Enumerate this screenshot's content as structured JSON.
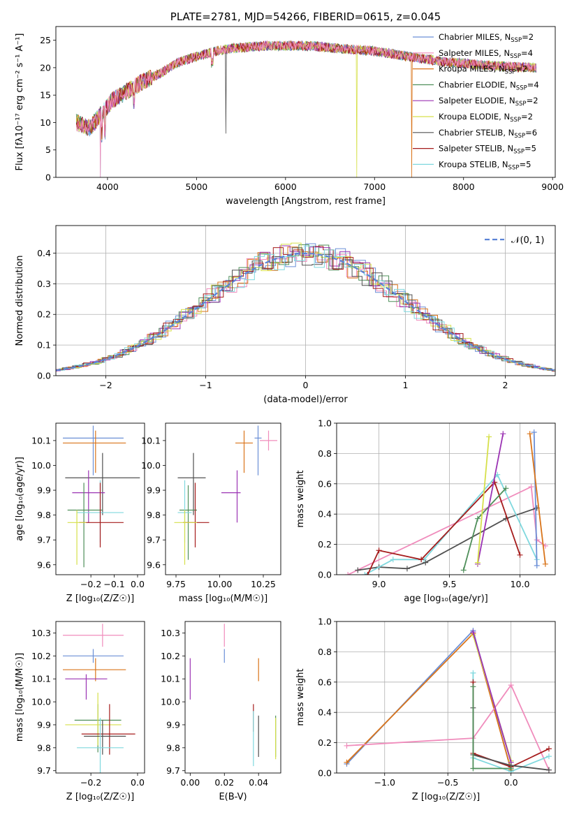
{
  "chart_data": [
    {
      "type": "line",
      "title": "PLATE=2781, MJD=54266, FIBERID=0615, z=0.045",
      "xlabel": "wavelength [Angstrom, rest frame]",
      "ylabel": "Flux [fλ10⁻¹⁷ erg cm⁻² s⁻¹ A⁻¹]",
      "xlim": [
        3420,
        9030
      ],
      "ylim": [
        0,
        27.5
      ],
      "xticks": [
        4000,
        5000,
        6000,
        7000,
        8000,
        9000
      ],
      "yticks": [
        0,
        5,
        10,
        15,
        20,
        25
      ],
      "grid": false,
      "legend": "upper right",
      "continuum": [
        [
          3650,
          10
        ],
        [
          3800,
          9
        ],
        [
          3950,
          12
        ],
        [
          4050,
          14
        ],
        [
          4200,
          15.5
        ],
        [
          4400,
          17.5
        ],
        [
          4600,
          19
        ],
        [
          4800,
          21
        ],
        [
          5000,
          22
        ],
        [
          5200,
          23
        ],
        [
          5400,
          23.5
        ],
        [
          5600,
          23.8
        ],
        [
          5800,
          24
        ],
        [
          6000,
          24
        ],
        [
          6200,
          24
        ],
        [
          6400,
          23.8
        ],
        [
          6600,
          23.5
        ],
        [
          6800,
          23.3
        ],
        [
          7000,
          23
        ],
        [
          7200,
          22.5
        ],
        [
          7400,
          22
        ],
        [
          7600,
          21.5
        ],
        [
          7800,
          21
        ],
        [
          8000,
          20.8
        ],
        [
          8200,
          20.5
        ],
        [
          8400,
          20.3
        ],
        [
          8600,
          20.1
        ],
        [
          8820,
          20
        ]
      ],
      "drops": [
        [
          3920,
          0
        ],
        [
          6800,
          0
        ],
        [
          7420,
          0
        ],
        [
          5330,
          8
        ]
      ],
      "series": [
        {
          "name": "Chabrier MILES, N_SSP=2",
          "label_main": "Chabrier MILES, N",
          "label_sub": "SSP",
          "label_tail": "=2",
          "color": "#6b8fd6"
        },
        {
          "name": "Salpeter MILES, N_SSP=4",
          "label_main": "Salpeter MILES, N",
          "label_sub": "SSP",
          "label_tail": "=4",
          "color": "#f08cbc"
        },
        {
          "name": "Kroupa MILES, N_SSP=2",
          "label_main": "Kroupa MILES, N",
          "label_sub": "SSP",
          "label_tail": "=2",
          "color": "#d9741a"
        },
        {
          "name": "Chabrier ELODIE, N_SSP=4",
          "label_main": "Chabrier ELODIE, N",
          "label_sub": "SSP",
          "label_tail": "=4",
          "color": "#4f8f5a"
        },
        {
          "name": "Salpeter ELODIE, N_SSP=2",
          "label_main": "Salpeter ELODIE, N",
          "label_sub": "SSP",
          "label_tail": "=2",
          "color": "#9b33b3"
        },
        {
          "name": "Kroupa ELODIE, N_SSP=2",
          "label_main": "Kroupa ELODIE, N",
          "label_sub": "SSP",
          "label_tail": "=2",
          "color": "#d6e04a"
        },
        {
          "name": "Chabrier STELIB, N_SSP=6",
          "label_main": "Chabrier STELIB, N",
          "label_sub": "SSP",
          "label_tail": "=6",
          "color": "#505050"
        },
        {
          "name": "Salpeter STELIB, N_SSP=5",
          "label_main": "Salpeter STELIB, N",
          "label_sub": "SSP",
          "label_tail": "=5",
          "color": "#a51c1c"
        },
        {
          "name": "Kroupa STELIB, N_SSP=5",
          "label_main": "Kroupa STELIB, N",
          "label_sub": "SSP",
          "label_tail": "=5",
          "color": "#7fd8de"
        }
      ]
    },
    {
      "type": "histogram",
      "xlabel": "(data-model)/error",
      "ylabel": "Normed distribution",
      "xlim": [
        -2.5,
        2.5
      ],
      "ylim": [
        0,
        0.49
      ],
      "xticks": [
        -2,
        -1,
        0,
        1,
        2
      ],
      "yticks": [
        0.0,
        0.1,
        0.2,
        0.3,
        0.4
      ],
      "grid": true,
      "legend": "upper right",
      "legend_label": "𝒩(0, 1)",
      "reference_curve": {
        "name": "N(0,1)",
        "mean": 0,
        "sigma": 1,
        "color": "#5b83d6",
        "style": "dashed"
      },
      "bin_width": 0.1,
      "histograms": "one step histogram per model, approximately normal shape, peak near 0.40-0.46 at 0"
    },
    {
      "type": "errorbar",
      "xlabel": "Z [log₁₀(Z/Z☉)]",
      "ylabel": "age  [log₁₀(age/yr)]",
      "xlim": [
        -0.35,
        0.03
      ],
      "ylim": [
        9.56,
        10.17
      ],
      "xticks": [
        -0.2,
        -0.1,
        0.0
      ],
      "yticks": [
        9.6,
        9.7,
        9.8,
        9.9,
        10.0,
        10.1
      ],
      "points": [
        {
          "x": -0.19,
          "xerr": [
            0.13,
            0.13
          ],
          "y": 10.11,
          "yerr": [
            0.15,
            0.05
          ],
          "color": "#6b8fd6"
        },
        {
          "x": -0.18,
          "xerr": [
            0.14,
            0.13
          ],
          "y": 10.09,
          "yerr": [
            0.12,
            0.05
          ],
          "color": "#d9741a"
        },
        {
          "x": -0.15,
          "xerr": [
            0.16,
            0.16
          ],
          "y": 9.95,
          "yerr": [
            0.15,
            0.1
          ],
          "color": "#505050"
        },
        {
          "x": -0.21,
          "xerr": [
            0.07,
            0.07
          ],
          "y": 9.89,
          "yerr": [
            0.12,
            0.09
          ],
          "color": "#9b33b3"
        },
        {
          "x": -0.23,
          "xerr": [
            0.07,
            0.08
          ],
          "y": 9.82,
          "yerr": [
            0.23,
            0.11
          ],
          "color": "#4f8f5a"
        },
        {
          "x": -0.16,
          "xerr": [
            0.1,
            0.1
          ],
          "y": 9.81,
          "yerr": [
            0.12,
            0.13
          ],
          "color": "#7fd8de"
        },
        {
          "x": -0.16,
          "xerr": [
            0.09,
            0.1
          ],
          "y": 9.77,
          "yerr": [
            0.1,
            0.16
          ],
          "color": "#a51c1c"
        },
        {
          "x": -0.26,
          "xerr": [
            0.04,
            0.04
          ],
          "y": 9.77,
          "yerr": [
            0.17,
            0.05
          ],
          "color": "#d6e04a"
        }
      ]
    },
    {
      "type": "errorbar",
      "xlabel": "mass [log₁₀(M/M☉)]",
      "xlim": [
        9.69,
        10.35
      ],
      "ylim": [
        9.56,
        10.17
      ],
      "xticks": [
        9.75,
        10.0,
        10.25
      ],
      "yticks": [
        9.6,
        9.7,
        9.8,
        9.9,
        10.0,
        10.1
      ],
      "points": [
        {
          "x": 10.22,
          "xerr": [
            0.02,
            0.02
          ],
          "y": 10.11,
          "yerr": [
            0.15,
            0.05
          ],
          "color": "#6b8fd6"
        },
        {
          "x": 10.28,
          "xerr": [
            0.05,
            0.05
          ],
          "y": 10.1,
          "yerr": [
            0.04,
            0.04
          ],
          "color": "#f08cbc"
        },
        {
          "x": 10.14,
          "xerr": [
            0.05,
            0.05
          ],
          "y": 10.09,
          "yerr": [
            0.12,
            0.05
          ],
          "color": "#d9741a"
        },
        {
          "x": 9.85,
          "xerr": [
            0.09,
            0.07
          ],
          "y": 9.95,
          "yerr": [
            0.15,
            0.1
          ],
          "color": "#505050"
        },
        {
          "x": 10.1,
          "xerr": [
            0.09,
            0.02
          ],
          "y": 9.89,
          "yerr": [
            0.12,
            0.09
          ],
          "color": "#9b33b3"
        },
        {
          "x": 9.82,
          "xerr": [
            0.05,
            0.05
          ],
          "y": 9.82,
          "yerr": [
            0.2,
            0.1
          ],
          "color": "#4f8f5a"
        },
        {
          "x": 9.8,
          "xerr": [
            0.04,
            0.04
          ],
          "y": 9.81,
          "yerr": [
            0.12,
            0.13
          ],
          "color": "#7fd8de"
        },
        {
          "x": 9.86,
          "xerr": [
            0.07,
            0.08
          ],
          "y": 9.77,
          "yerr": [
            0.1,
            0.16
          ],
          "color": "#a51c1c"
        },
        {
          "x": 9.8,
          "xerr": [
            0.06,
            0.07
          ],
          "y": 9.77,
          "yerr": [
            0.17,
            0.05
          ],
          "color": "#d6e04a"
        }
      ]
    },
    {
      "type": "line",
      "xlabel": "age  [log₁₀(age/yr)]",
      "ylabel": "mass weight",
      "xlim": [
        8.7,
        10.25
      ],
      "ylim": [
        0,
        1.0
      ],
      "xticks": [
        9.0,
        9.5,
        10.0
      ],
      "yticks": [
        0.0,
        0.2,
        0.4,
        0.6,
        0.8,
        1.0
      ],
      "grid": true,
      "series": [
        {
          "name": "Salpeter MILES",
          "color": "#f08cbc",
          "x": [
            8.78,
            10.08,
            10.12,
            10.18
          ],
          "y": [
            0.0,
            0.58,
            0.23,
            0.19
          ]
        },
        {
          "name": "Chabrier STELIB",
          "color": "#505050",
          "x": [
            8.85,
            9.0,
            9.2,
            9.33,
            9.9,
            10.12
          ],
          "y": [
            0.03,
            0.05,
            0.04,
            0.08,
            0.37,
            0.44
          ]
        },
        {
          "name": "Kroupa STELIB",
          "color": "#7fd8de",
          "x": [
            8.9,
            9.1,
            9.32,
            9.84,
            10.12
          ],
          "y": [
            0.0,
            0.1,
            0.1,
            0.66,
            0.1
          ]
        },
        {
          "name": "Salpeter STELIB",
          "color": "#a51c1c",
          "x": [
            8.92,
            9.0,
            9.3,
            9.82,
            10.0
          ],
          "y": [
            0.0,
            0.16,
            0.1,
            0.61,
            0.13
          ]
        },
        {
          "name": "Chabrier ELODIE",
          "color": "#4f8f5a",
          "x": [
            9.6,
            9.7,
            9.9
          ],
          "y": [
            0.03,
            0.37,
            0.57
          ]
        },
        {
          "name": "Salpeter ELODIE",
          "color": "#9b33b3",
          "x": [
            9.7,
            9.88
          ],
          "y": [
            0.07,
            0.93
          ]
        },
        {
          "name": "Kroupa ELODIE",
          "color": "#d6e04a",
          "x": [
            9.7,
            9.78
          ],
          "y": [
            0.08,
            0.91
          ]
        },
        {
          "name": "Chabrier MILES",
          "color": "#6b8fd6",
          "x": [
            10.1,
            10.12
          ],
          "y": [
            0.94,
            0.06
          ]
        },
        {
          "name": "Kroupa MILES",
          "color": "#d9741a",
          "x": [
            10.07,
            10.18
          ],
          "y": [
            0.93,
            0.07
          ]
        }
      ]
    },
    {
      "type": "errorbar",
      "xlabel": "Z [log₁₀(Z/Z☉)]",
      "ylabel": "mass [log₁₀(M/M☉)]",
      "xlim": [
        -0.35,
        0.03
      ],
      "ylim": [
        9.69,
        10.35
      ],
      "xticks": [
        -0.2,
        0.0
      ],
      "yticks": [
        9.7,
        9.8,
        9.9,
        10.0,
        10.1,
        10.2,
        10.3
      ],
      "points": [
        {
          "x": -0.15,
          "xerr": [
            0.17,
            0.09
          ],
          "y": 10.29,
          "yerr": [
            0.05,
            0.05
          ],
          "color": "#f08cbc"
        },
        {
          "x": -0.19,
          "xerr": [
            0.13,
            0.13
          ],
          "y": 10.2,
          "yerr": [
            0.03,
            0.03
          ],
          "color": "#6b8fd6"
        },
        {
          "x": -0.18,
          "xerr": [
            0.14,
            0.13
          ],
          "y": 10.14,
          "yerr": [
            0.05,
            0.05
          ],
          "color": "#d9741a"
        },
        {
          "x": -0.22,
          "xerr": [
            0.09,
            0.09
          ],
          "y": 10.1,
          "yerr": [
            0.09,
            0.02
          ],
          "color": "#9b33b3"
        },
        {
          "x": -0.17,
          "xerr": [
            0.1,
            0.1
          ],
          "y": 9.92,
          "yerr": [
            0.14,
            0.07
          ],
          "color": "#4f8f5a"
        },
        {
          "x": -0.17,
          "xerr": [
            0.14,
            0.1
          ],
          "y": 9.9,
          "yerr": [
            0.09,
            0.14
          ],
          "color": "#d6e04a"
        },
        {
          "x": -0.12,
          "xerr": [
            0.12,
            0.11
          ],
          "y": 9.86,
          "yerr": [
            0.09,
            0.13
          ],
          "color": "#a51c1c"
        },
        {
          "x": -0.15,
          "xerr": [
            0.08,
            0.1
          ],
          "y": 9.85,
          "yerr": [
            0.08,
            0.07
          ],
          "color": "#505050"
        },
        {
          "x": -0.16,
          "xerr": [
            0.1,
            0.1
          ],
          "y": 9.8,
          "yerr": [
            0.12,
            0.13
          ],
          "color": "#7fd8de"
        }
      ]
    },
    {
      "type": "errorbar",
      "xlabel": "E(B-V)",
      "xlim": [
        -0.003,
        0.053
      ],
      "ylim": [
        9.69,
        10.35
      ],
      "xticks": [
        0.0,
        0.02,
        0.04
      ],
      "yticks": [
        9.7,
        9.8,
        9.9,
        10.0,
        10.1,
        10.2,
        10.3
      ],
      "points": [
        {
          "x": 0.02,
          "xerr": [
            0,
            0
          ],
          "y": 10.29,
          "yerr": [
            0.05,
            0.05
          ],
          "color": "#f08cbc"
        },
        {
          "x": 0.02,
          "xerr": [
            0,
            0
          ],
          "y": 10.2,
          "yerr": [
            0.03,
            0.03
          ],
          "color": "#6b8fd6"
        },
        {
          "x": 0.04,
          "xerr": [
            0,
            0
          ],
          "y": 10.14,
          "yerr": [
            0.05,
            0.05
          ],
          "color": "#d9741a"
        },
        {
          "x": 0.0,
          "xerr": [
            0,
            0
          ],
          "y": 10.1,
          "yerr": [
            0.09,
            0.09
          ],
          "color": "#9b33b3"
        },
        {
          "x": 0.05,
          "xerr": [
            0,
            0
          ],
          "y": 9.85,
          "yerr": [
            0.09,
            0.09
          ],
          "color": "#4f8f5a"
        },
        {
          "x": 0.05,
          "xerr": [
            0,
            0
          ],
          "y": 9.84,
          "yerr": [
            0.09,
            0.09
          ],
          "color": "#d6e04a"
        },
        {
          "x": 0.037,
          "xerr": [
            0,
            0
          ],
          "y": 9.93,
          "yerr": [
            0.06,
            0.06
          ],
          "color": "#a51c1c"
        },
        {
          "x": 0.04,
          "xerr": [
            0,
            0
          ],
          "y": 9.85,
          "yerr": [
            0.09,
            0.09
          ],
          "color": "#505050"
        },
        {
          "x": 0.037,
          "xerr": [
            0,
            0
          ],
          "y": 9.84,
          "yerr": [
            0.12,
            0.12
          ],
          "color": "#7fd8de"
        }
      ]
    },
    {
      "type": "line",
      "xlabel": "Z [log₁₀(Z/Z☉)]",
      "ylabel": "mass weight",
      "xlim": [
        -1.38,
        0.35
      ],
      "ylim": [
        0,
        1.0
      ],
      "xticks": [
        -1.0,
        -0.5,
        0.0
      ],
      "yticks": [
        0.0,
        0.2,
        0.4,
        0.6,
        0.8,
        1.0
      ],
      "grid": true,
      "series": [
        {
          "name": "Chabrier MILES",
          "color": "#6b8fd6",
          "x": [
            -1.3,
            -0.3,
            0.0
          ],
          "y": [
            0.06,
            0.94,
            0.02
          ]
        },
        {
          "name": "Kroupa MILES",
          "color": "#d9741a",
          "x": [
            -1.3,
            -0.3,
            0.0
          ],
          "y": [
            0.07,
            0.92,
            0.02
          ]
        },
        {
          "name": "Salpeter MILES",
          "color": "#f08cbc",
          "x": [
            -1.3,
            -0.3,
            0.0,
            0.3
          ],
          "y": [
            0.18,
            0.23,
            0.58,
            0.02
          ]
        },
        {
          "name": "Kroupa ELODIE",
          "color": "#d6e04a",
          "x": [
            -0.3,
            0.0
          ],
          "y": [
            0.91,
            0.08
          ]
        },
        {
          "name": "Salpeter ELODIE",
          "color": "#9b33b3",
          "x": [
            -0.3,
            0.0
          ],
          "y": [
            0.93,
            0.07
          ]
        },
        {
          "name": "Kroupa STELIB",
          "color": "#7fd8de",
          "x": [
            -0.3,
            -0.3,
            0.0,
            0.3
          ],
          "y": [
            0.66,
            0.1,
            0.01,
            0.11
          ]
        },
        {
          "name": "Salpeter STELIB",
          "color": "#a51c1c",
          "x": [
            -0.3,
            -0.3,
            0.0,
            0.3
          ],
          "y": [
            0.6,
            0.13,
            0.04,
            0.16
          ]
        },
        {
          "name": "Chabrier STELIB",
          "color": "#505050",
          "x": [
            -0.3,
            -0.3,
            0.0,
            0.3
          ],
          "y": [
            0.43,
            0.12,
            0.05,
            0.02
          ]
        },
        {
          "name": "Chabrier ELODIE",
          "color": "#4f8f5a",
          "x": [
            -0.3,
            -0.3,
            0.0
          ],
          "y": [
            0.57,
            0.03,
            0.03
          ]
        }
      ]
    }
  ]
}
